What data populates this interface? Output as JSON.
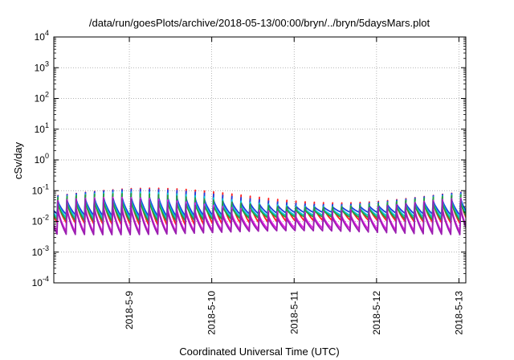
{
  "chart_data": {
    "type": "line",
    "title": "/data/run/goesPlots/archive/2018-05-13/00:00/bryn/../bryn/5daysMars.plot",
    "xlabel": "Coordinated Universal Time (UTC)",
    "ylabel": "cSv/day",
    "y_scale": "log",
    "ylim": [
      0.0001,
      10000
    ],
    "xlim": [
      "2018-05-08T02:00",
      "2018-05-13T02:00"
    ],
    "y_ticks": [
      {
        "value": 0.0001,
        "base": "10",
        "exp": "-4"
      },
      {
        "value": 0.001,
        "base": "10",
        "exp": "-3"
      },
      {
        "value": 0.01,
        "base": "10",
        "exp": "-2"
      },
      {
        "value": 0.1,
        "base": "10",
        "exp": "-1"
      },
      {
        "value": 1,
        "base": "10",
        "exp": "0"
      },
      {
        "value": 10,
        "base": "10",
        "exp": "1"
      },
      {
        "value": 100,
        "base": "10",
        "exp": "2"
      },
      {
        "value": 1000,
        "base": "10",
        "exp": "3"
      },
      {
        "value": 10000,
        "base": "10",
        "exp": "4"
      }
    ],
    "x_ticks": [
      "2018-5-9",
      "2018-5-10",
      "2018-5-11",
      "2018-5-12",
      "2018-5-13"
    ],
    "x_tick_dates": [
      "2018-05-09",
      "2018-05-10",
      "2018-05-11",
      "2018-05-12",
      "2018-05-13"
    ],
    "grid": true,
    "legend": "none",
    "sawtooth_cycles_per_day": 9,
    "series": [
      {
        "color": "#ff2020",
        "peak_values": [
          0.04,
          0.12
        ],
        "trough_values": [
          0.006,
          0.011
        ]
      },
      {
        "color": "#1f3fe0",
        "peak_values": [
          0.035,
          0.11
        ],
        "trough_values": [
          0.012,
          0.02
        ]
      },
      {
        "color": "#00c8d8",
        "peak_values": [
          0.03,
          0.09
        ],
        "trough_values": [
          0.01,
          0.016
        ]
      },
      {
        "color": "#2a9d3a",
        "peak_values": [
          0.028,
          0.08
        ],
        "trough_values": [
          0.008,
          0.014
        ]
      },
      {
        "color": "#e020e0",
        "peak_values": [
          0.02,
          0.06
        ],
        "trough_values": [
          0.0035,
          0.006
        ]
      },
      {
        "color": "#9b1fb0",
        "peak_values": [
          0.018,
          0.055
        ],
        "trough_values": [
          0.003,
          0.005
        ]
      }
    ]
  }
}
